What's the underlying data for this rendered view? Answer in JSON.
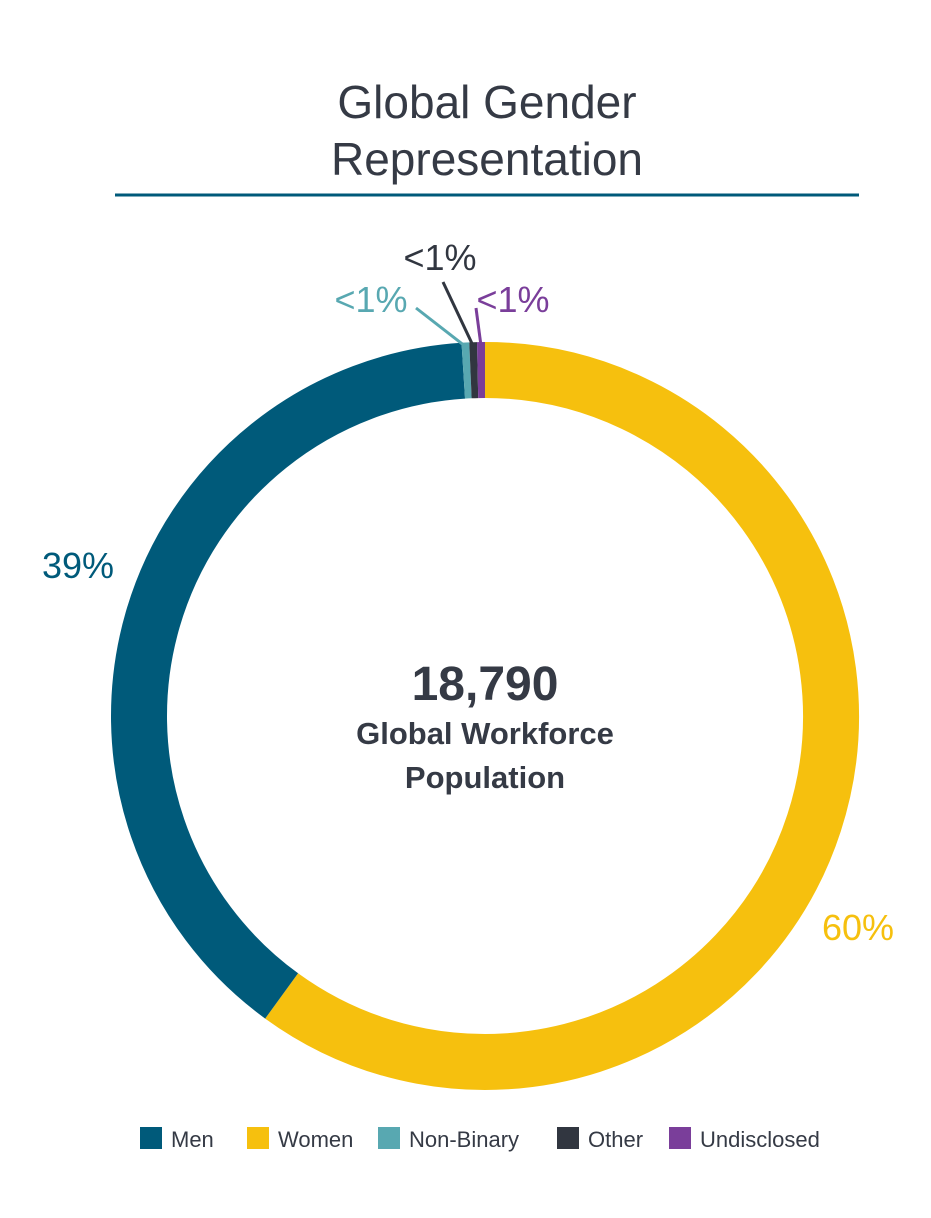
{
  "chart_data": {
    "type": "pie",
    "style": "donut",
    "title": "Global Gender Representation",
    "title_lines": [
      "Global Gender",
      "Representation"
    ],
    "center": {
      "value": "18,790",
      "label_lines": [
        "Global Workforce",
        "Population"
      ]
    },
    "start": "top, clockwise",
    "slices": [
      {
        "name": "Women",
        "value": 60,
        "label": "60%",
        "color": "#f6c00e",
        "label_position": "right"
      },
      {
        "name": "Men",
        "value": 39,
        "label": "39%",
        "color": "#005a7a",
        "label_position": "left"
      },
      {
        "name": "Non-Binary",
        "value": 0.33,
        "label": "<1%",
        "color": "#58a8b1",
        "label_position": "top"
      },
      {
        "name": "Other",
        "value": 0.33,
        "label": "<1%",
        "color": "#313640",
        "label_position": "top"
      },
      {
        "name": "Undisclosed",
        "value": 0.34,
        "label": "<1%",
        "color": "#7a3e9a",
        "label_position": "top"
      }
    ],
    "legend": {
      "position": "bottom",
      "items": [
        "Men",
        "Women",
        "Non-Binary",
        "Other",
        "Undisclosed"
      ]
    },
    "title_rule_color": "#005a7a",
    "text_color": "#353a45"
  }
}
